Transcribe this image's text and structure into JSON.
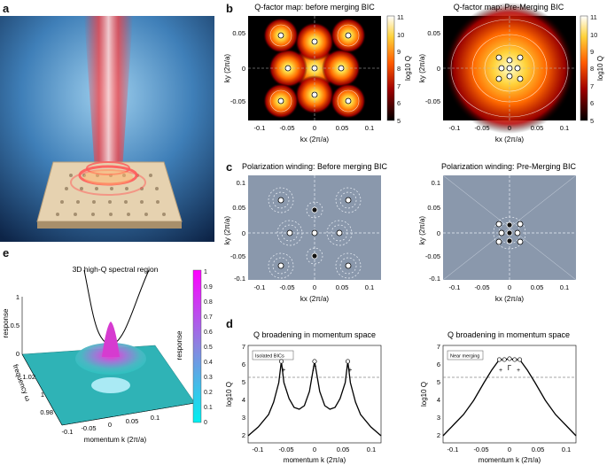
{
  "panel_letters": {
    "a": "a",
    "b": "b",
    "c": "c",
    "d": "d",
    "e": "e"
  },
  "panel_b": {
    "left_title": "Q-factor map: before merging BIC",
    "right_title": "Q-factor map: Pre-Merging BIC",
    "xlabel": "kx (2π/a)",
    "ylabel": "ky (2π/a)",
    "colorbar_label": "log10 Q",
    "colorbar_ticks": [
      "11",
      "10",
      "9",
      "8",
      "7",
      "6",
      "5"
    ]
  },
  "panel_c": {
    "left_title": "Polarization winding: Before merging BIC",
    "right_title": "Polarization winding: Pre-Merging BIC",
    "xlabel": "kx (2π/a)",
    "ylabel": "ky (2π/a)"
  },
  "panel_d": {
    "left_title": "Q broadening in momentum space",
    "right_title": "Q broadening in momentum space",
    "left_legend": "Isolated BICs",
    "right_legend": "Near merging",
    "xlabel": "momentum k (2π/a)",
    "ylabel": "log10 Q",
    "gamma_label": "Γ",
    "plus_label": "+"
  },
  "panel_e": {
    "annotation": "3D high-Q spectral region",
    "zlabel": "response",
    "ylabel": "frequency ω",
    "xlabel": "momentum k (2π/a)",
    "z_ticks": [
      "1",
      "0.5",
      "0"
    ],
    "y_ticks": [
      "1.02",
      "1",
      "0.98"
    ],
    "x_ticks": [
      "-0.1",
      "-0.05",
      "0",
      "0.05",
      "0.1"
    ],
    "colorbar_label": "response",
    "colorbar_ticks": [
      "1",
      "0.9",
      "0.8",
      "0.7",
      "0.6",
      "0.5",
      "0.4",
      "0.3",
      "0.2",
      "0.1",
      "0"
    ]
  },
  "axis_ticks": {
    "k": [
      "-0.1",
      "-0.05",
      "0",
      "0.05",
      "0.1"
    ],
    "logq": [
      "2",
      "3",
      "4",
      "5",
      "6",
      "7"
    ]
  },
  "chart_data": [
    {
      "type": "heatmap",
      "title": "Q-factor map: before merging BIC",
      "xlabel": "kx (2π/a)",
      "ylabel": "ky (2π/a)",
      "xlim": [
        -0.12,
        0.12
      ],
      "ylim": [
        -0.12,
        0.12
      ],
      "colorbar_range": [
        5,
        11
      ],
      "bic_points": [
        [
          0,
          0
        ],
        [
          -0.065,
          0.065
        ],
        [
          0.065,
          0.065
        ],
        [
          -0.065,
          -0.065
        ],
        [
          0.065,
          -0.065
        ],
        [
          0,
          0.05
        ],
        [
          0,
          -0.05
        ],
        [
          -0.05,
          0
        ],
        [
          0.05,
          0
        ]
      ]
    },
    {
      "type": "heatmap",
      "title": "Q-factor map: Pre-Merging BIC",
      "xlabel": "kx (2π/a)",
      "ylabel": "ky (2π/a)",
      "xlim": [
        -0.12,
        0.12
      ],
      "ylim": [
        -0.12,
        0.12
      ],
      "colorbar_range": [
        5,
        11
      ],
      "bic_points": [
        [
          0,
          0
        ],
        [
          -0.02,
          0.02
        ],
        [
          0.02,
          0.02
        ],
        [
          -0.02,
          -0.02
        ],
        [
          0.02,
          -0.02
        ],
        [
          0,
          0.015
        ],
        [
          0,
          -0.015
        ],
        [
          -0.015,
          0
        ],
        [
          0.015,
          0
        ]
      ]
    },
    {
      "type": "line",
      "title": "Q broadening in momentum space",
      "xlabel": "momentum k (2π/a)",
      "ylabel": "log10 Q",
      "xlim": [
        -0.13,
        0.13
      ],
      "ylim": [
        1.6,
        7.1
      ],
      "threshold": 5.3,
      "x": [
        -0.13,
        -0.11,
        -0.09,
        -0.08,
        -0.07,
        -0.065,
        -0.06,
        -0.05,
        -0.04,
        -0.03,
        -0.02,
        -0.01,
        0,
        0.01,
        0.02,
        0.03,
        0.04,
        0.05,
        0.06,
        0.065,
        0.07,
        0.08,
        0.09,
        0.11,
        0.13
      ],
      "y": [
        2.0,
        2.5,
        3.2,
        3.9,
        5.0,
        6.2,
        5.0,
        4.1,
        3.6,
        3.5,
        3.7,
        4.5,
        6.2,
        4.5,
        3.7,
        3.5,
        3.6,
        4.1,
        5.0,
        6.2,
        5.0,
        3.9,
        3.2,
        2.5,
        2.0
      ]
    },
    {
      "type": "line",
      "title": "Q broadening in momentum space",
      "xlabel": "momentum k (2π/a)",
      "ylabel": "log10 Q",
      "xlim": [
        -0.13,
        0.13
      ],
      "ylim": [
        1.6,
        7.1
      ],
      "threshold": 5.3,
      "x": [
        -0.13,
        -0.11,
        -0.09,
        -0.07,
        -0.05,
        -0.035,
        -0.025,
        -0.02,
        -0.01,
        0,
        0.01,
        0.02,
        0.025,
        0.035,
        0.05,
        0.07,
        0.09,
        0.11,
        0.13
      ],
      "y": [
        2.0,
        2.6,
        3.2,
        4.0,
        5.0,
        5.7,
        6.1,
        6.3,
        6.3,
        6.35,
        6.3,
        6.3,
        6.1,
        5.7,
        5.0,
        4.0,
        3.2,
        2.6,
        2.0
      ]
    }
  ]
}
